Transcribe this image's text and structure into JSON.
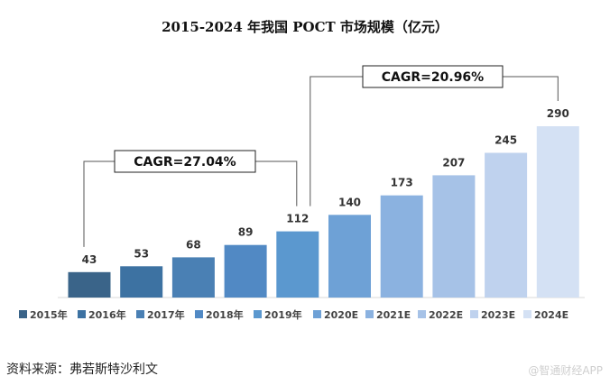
{
  "chart_data": {
    "type": "bar",
    "title": "2015-2024 年我国 POCT 市场规模（亿元）",
    "categories": [
      "2015年",
      "2016年",
      "2017年",
      "2018年",
      "2019年",
      "2020E",
      "2021E",
      "2022E",
      "2023E",
      "2024E"
    ],
    "values": [
      43,
      53,
      68,
      89,
      112,
      140,
      173,
      207,
      245,
      290
    ],
    "colors": [
      "#3a6489",
      "#3d72a2",
      "#4a80b4",
      "#5189c4",
      "#5b98cf",
      "#6ea1d6",
      "#8bb2e0",
      "#a6c2e7",
      "#bfd2ee",
      "#d4e1f4"
    ],
    "ylim": [
      0,
      290
    ],
    "xlabel": "",
    "ylabel": "",
    "legend_position": "bottom",
    "annotations": [
      {
        "label": "CAGR=27.04%",
        "from": "2015年",
        "to": "2019年"
      },
      {
        "label": "CAGR=20.96%",
        "from": "2019年",
        "to": "2024E"
      }
    ]
  },
  "footer": {
    "source": "资料来源：弗若斯特沙利文",
    "watermark": "@智通财经APP"
  }
}
